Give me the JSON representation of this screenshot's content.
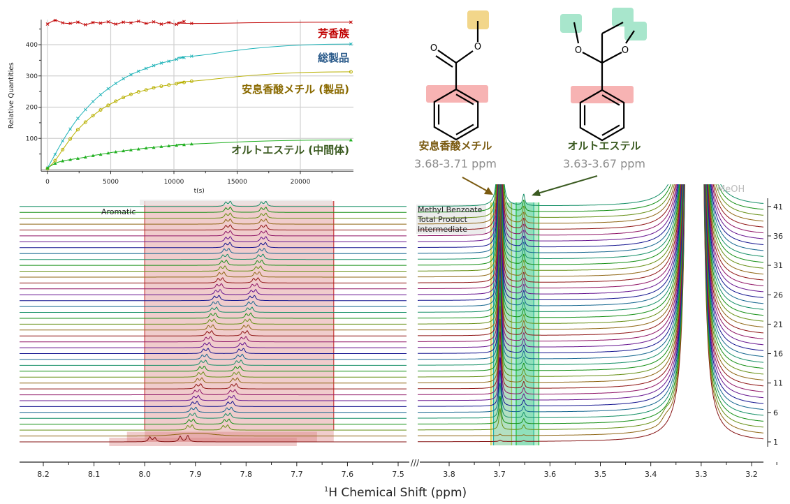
{
  "chart_data": [
    {
      "type": "scatter",
      "xlabel": "t(s)",
      "ylabel": "Relative Quantities",
      "xlim": [
        -500,
        24200
      ],
      "ylim": [
        -5,
        480
      ],
      "xticks": [
        0,
        5000,
        10000,
        15000,
        20000
      ],
      "yticks": [
        100,
        200,
        300,
        400
      ],
      "grid": true,
      "x": [
        0,
        600,
        1200,
        1800,
        2400,
        3000,
        3600,
        4200,
        4800,
        5400,
        6000,
        6600,
        7200,
        7800,
        8400,
        9000,
        9600,
        10200,
        10800,
        11400,
        24000
      ],
      "series": [
        {
          "name": "芳香族",
          "color": "#c00000",
          "marker": "x",
          "values": [
            466,
            478,
            470,
            468,
            472,
            464,
            471,
            469,
            473,
            466,
            472,
            470,
            475,
            468,
            473,
            466,
            471,
            465,
            474,
            468,
            472
          ]
        },
        {
          "name": "総製品",
          "color": "#1fb3b8",
          "marker": "x",
          "values": [
            5,
            49,
            92,
            130,
            164,
            192,
            218,
            240,
            259,
            276,
            291,
            304,
            315,
            324,
            333,
            341,
            347,
            353,
            359,
            363,
            402
          ]
        },
        {
          "name": "安息香酸メチル (製品)",
          "color": "#b8b000",
          "marker": "o",
          "values": [
            3,
            29,
            64,
            98,
            128,
            152,
            173,
            191,
            206,
            219,
            231,
            241,
            249,
            255,
            262,
            267,
            271,
            275,
            279,
            283,
            313
          ]
        },
        {
          "name": "オルトエステル (中間体)",
          "color": "#22b022",
          "marker": "triangle",
          "values": [
            5,
            20,
            28,
            32,
            36,
            40,
            45,
            49,
            53,
            57,
            60,
            63,
            66,
            69,
            71,
            74,
            76,
            78,
            80,
            82,
            95
          ]
        }
      ],
      "label_colors": [
        "#c00000",
        "#2a5a8a",
        "#8a6a00",
        "#3a5a20"
      ]
    },
    {
      "type": "line",
      "xlabel_sup": "1",
      "xlabel": "H Chemical Shift (ppm)",
      "xlim_left": [
        8.25,
        7.48
      ],
      "xlim_right": [
        3.86,
        3.18
      ],
      "xticks_left": [
        "8.2",
        "8.1",
        "8.0",
        "7.9",
        "7.8",
        "7.7",
        "7.6",
        "7.5"
      ],
      "xticks_right": [
        "3.8",
        "3.7",
        "3.6",
        "3.5",
        "3.4",
        "3.3",
        "3.2"
      ],
      "trace_count": 41,
      "yticks": [
        "1",
        "6",
        "11",
        "16",
        "21",
        "26",
        "31",
        "36",
        "41"
      ],
      "regions": [
        {
          "label": "Aromatic",
          "from": 8.0,
          "to": 7.627,
          "color": "#d98080"
        },
        {
          "label": "Methyl Benzoate",
          "from": 3.717,
          "to": 3.676,
          "color": "#d8d870"
        },
        {
          "label": "Total Product",
          "from": 3.712,
          "to": 3.632,
          "color": "#40c0b0"
        },
        {
          "label": "Intermediate",
          "from": 3.667,
          "to": 3.622,
          "color": "#40d070"
        }
      ],
      "peaks": [
        {
          "ppm_start": 7.92,
          "ppm_end": 7.84
        },
        {
          "ppm_start": 7.85,
          "ppm_end": 7.77
        },
        {
          "ppm": 3.699
        },
        {
          "ppm": 3.652
        },
        {
          "ppm": 3.313
        }
      ],
      "solvent_label": "MeOH"
    }
  ],
  "structures": {
    "methyl_benzoate": {
      "name": "安息香酸メチル",
      "range": "3.68-3.71 ppm",
      "color": "#7a5a10",
      "atom": "O"
    },
    "orthoester": {
      "name": "オルトエステル",
      "range": "3.63-3.67 ppm",
      "color": "#3a5a20",
      "atom": "O"
    }
  },
  "range_color": "#8c8c8c",
  "break_mark": "///"
}
